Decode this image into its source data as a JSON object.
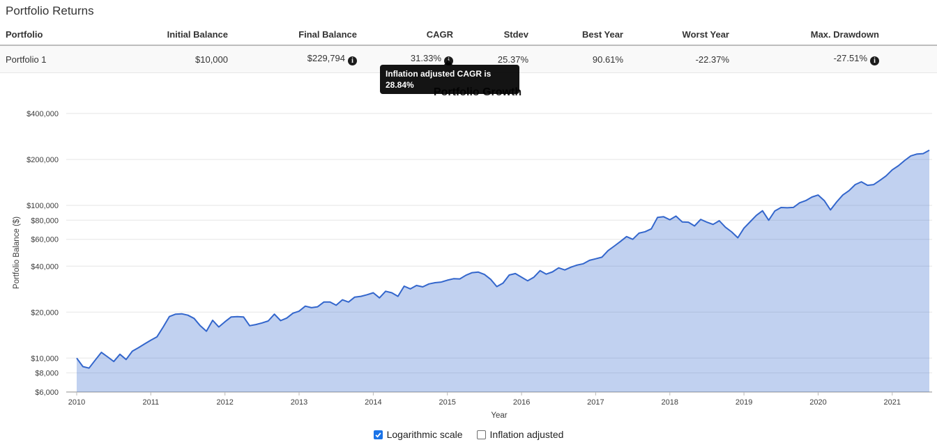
{
  "page": {
    "title": "Portfolio Returns"
  },
  "table": {
    "headers": [
      "Portfolio",
      "Initial Balance",
      "Final Balance",
      "CAGR",
      "Stdev",
      "Best Year",
      "Worst Year",
      "Max. Drawdown"
    ],
    "row": {
      "portfolio": "Portfolio 1",
      "initial_balance": "$10,000",
      "final_balance": "$229,794",
      "cagr": "31.33%",
      "stdev": "25.37%",
      "best_year": "90.61%",
      "worst_year": "-22.37%",
      "max_drawdown": "-27.51%"
    },
    "info_icon_glyph": "i"
  },
  "tooltip": {
    "text": "Inflation adjusted CAGR is 28.84%"
  },
  "controls": {
    "logarithmic": {
      "label": "Logarithmic scale",
      "checked": true
    },
    "inflation": {
      "label": "Inflation adjusted",
      "checked": false
    }
  },
  "chart_data": {
    "type": "area",
    "title": "Portfolio Growth",
    "xlabel": "Year",
    "ylabel": "Portfolio Balance ($)",
    "yscale": "log",
    "grid": true,
    "legend": "none",
    "ylim": [
      6000,
      400000
    ],
    "yticks": [
      6000,
      8000,
      10000,
      20000,
      40000,
      60000,
      80000,
      100000,
      200000,
      400000
    ],
    "xticks": [
      2010,
      2011,
      2012,
      2013,
      2014,
      2015,
      2016,
      2017,
      2018,
      2019,
      2020,
      2021
    ],
    "xlim": [
      2010,
      2021.5
    ],
    "line_color": "#3366cc",
    "fill_color": "rgba(51,102,204,0.3)",
    "series": [
      {
        "name": "Portfolio 1",
        "start_year": 2010,
        "interval_months": 1,
        "values": [
          10000,
          8800,
          8600,
          9700,
          10900,
          10200,
          9500,
          10600,
          9800,
          11100,
          11700,
          12400,
          13100,
          13800,
          16000,
          18700,
          19400,
          19500,
          19100,
          18200,
          16300,
          15000,
          17700,
          16000,
          17300,
          18600,
          18700,
          18600,
          16300,
          16600,
          17000,
          17500,
          19400,
          17600,
          18300,
          19700,
          20300,
          21900,
          21400,
          21700,
          23300,
          23300,
          22200,
          24100,
          23300,
          25100,
          25400,
          26000,
          26800,
          24800,
          27400,
          26800,
          25400,
          29600,
          28400,
          29900,
          29300,
          30600,
          31200,
          31500,
          32400,
          33100,
          33000,
          34900,
          36300,
          36600,
          35300,
          32800,
          29400,
          31000,
          35000,
          35800,
          33900,
          32100,
          33900,
          37400,
          35500,
          36700,
          39000,
          37800,
          39400,
          40700,
          41500,
          43700,
          44700,
          45800,
          50600,
          54100,
          58100,
          62500,
          60000,
          65800,
          67300,
          70200,
          83400,
          84300,
          80600,
          85100,
          78000,
          77700,
          73400,
          81000,
          77700,
          75100,
          79400,
          72000,
          67100,
          61400,
          71000,
          78200,
          86100,
          92300,
          80000,
          92000,
          96900,
          96500,
          97000,
          104000,
          107500,
          113500,
          117000,
          107500,
          93400,
          105400,
          117000,
          125000,
          137000,
          142800,
          135500,
          137000,
          145900,
          156100,
          171000,
          182000,
          197000,
          211000,
          217000,
          218500,
          229794
        ]
      }
    ]
  }
}
